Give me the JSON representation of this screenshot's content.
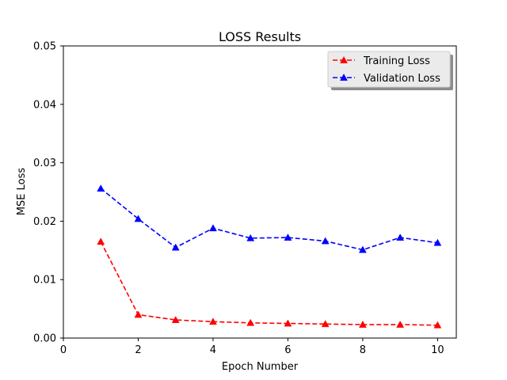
{
  "chart_data": {
    "type": "line",
    "title": "LOSS Results",
    "xlabel": "Epoch Number",
    "ylabel": "MSE Loss",
    "xlim": [
      0,
      10.5
    ],
    "ylim": [
      0,
      0.05
    ],
    "xticks": [
      0,
      2,
      4,
      6,
      8,
      10
    ],
    "yticks": [
      0.0,
      0.01,
      0.02,
      0.03,
      0.04,
      0.05
    ],
    "xtick_labels": [
      "0",
      "2",
      "4",
      "6",
      "8",
      "10"
    ],
    "ytick_labels": [
      "0.00",
      "0.01",
      "0.02",
      "0.03",
      "0.04",
      "0.05"
    ],
    "grid": false,
    "legend_position": "top-right",
    "x": [
      1,
      2,
      3,
      4,
      5,
      6,
      7,
      8,
      9,
      10
    ],
    "series": [
      {
        "name": "Training Loss",
        "color": "#ff0000",
        "linestyle": "dashed",
        "marker": "triangle",
        "values": [
          0.0165,
          0.004,
          0.0031,
          0.0028,
          0.0026,
          0.0025,
          0.0024,
          0.0023,
          0.0023,
          0.0022
        ]
      },
      {
        "name": "Validation Loss",
        "color": "#0000ff",
        "linestyle": "dashed",
        "marker": "triangle",
        "values": [
          0.0256,
          0.0204,
          0.0155,
          0.0188,
          0.0171,
          0.0172,
          0.0166,
          0.0151,
          0.0172,
          0.0163
        ]
      }
    ]
  }
}
